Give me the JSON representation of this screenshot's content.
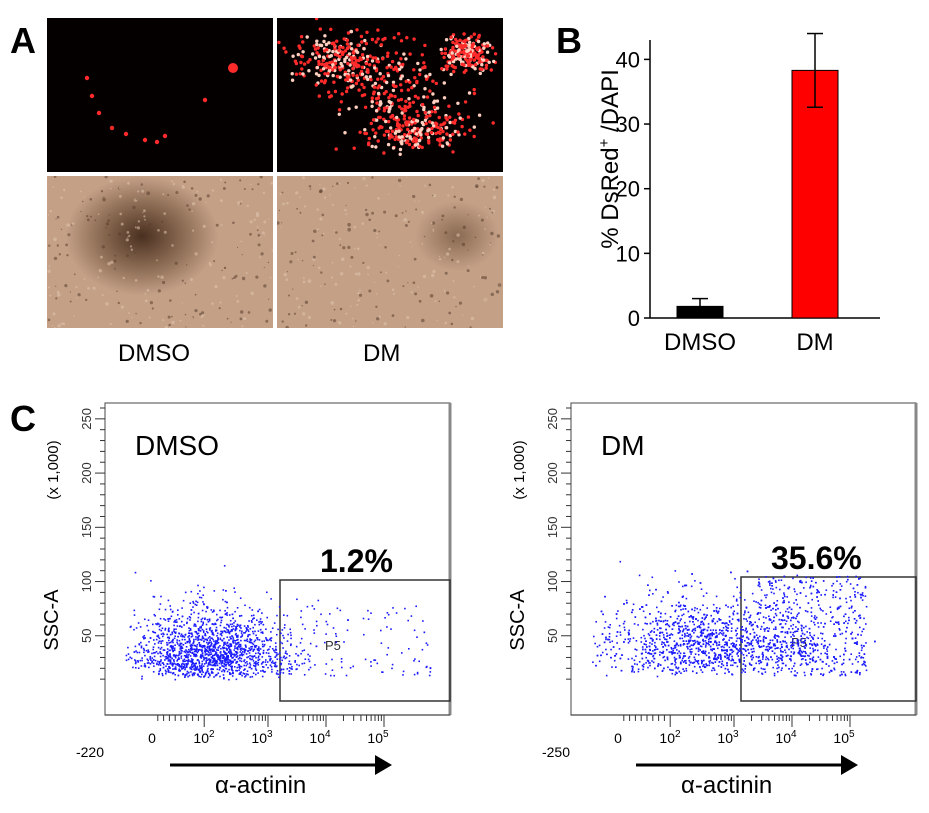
{
  "panels": {
    "a": "A",
    "b": "B",
    "c": "C"
  },
  "panel_a": {
    "conditions": [
      "DMSO",
      "DM"
    ],
    "rows": [
      "fluorescence",
      "brightfield"
    ]
  },
  "colors": {
    "dmso_bar": "#000000",
    "dm_bar": "#ff0000",
    "flow_dots": "#1a1aff",
    "fluor_dot": "#ff2a2a",
    "brightfield": "#c4a087"
  },
  "chart_data": [
    {
      "type": "bar",
      "panel": "B",
      "categories": [
        "DMSO",
        "DM"
      ],
      "values": [
        1.8,
        38.3
      ],
      "errors": [
        1.2,
        5.7
      ],
      "ylabel_prefix": "% DsRed",
      "ylabel_sup": "+",
      "ylabel_suffix": " /DAPI",
      "ylim": [
        0,
        43
      ],
      "yticks": [
        "0",
        "10",
        "20",
        "30",
        "40"
      ],
      "ytick_values": [
        0,
        10,
        20,
        30,
        40
      ]
    },
    {
      "type": "scatter",
      "panel": "C",
      "plots": [
        {
          "title": "DMSO",
          "gate_label": "P5",
          "percent": "1.2%",
          "x_min_label": "-220",
          "density": "low"
        },
        {
          "title": "DM",
          "gate_label": "P5",
          "percent": "35.6%",
          "x_min_label": "-250",
          "density": "high"
        }
      ],
      "y_axis_title": "SSC-A",
      "y_axis_units": "(x 1,000)",
      "yticks": [
        "50",
        "100",
        "150",
        "200",
        "250"
      ],
      "ytick_values": [
        50,
        100,
        150,
        200,
        250
      ],
      "xticks": [
        "0",
        "10",
        "10",
        "10",
        "10"
      ],
      "xtick_exponents": [
        "",
        "2",
        "3",
        "4",
        "5"
      ],
      "x_axis_title": "α-actinin"
    }
  ]
}
